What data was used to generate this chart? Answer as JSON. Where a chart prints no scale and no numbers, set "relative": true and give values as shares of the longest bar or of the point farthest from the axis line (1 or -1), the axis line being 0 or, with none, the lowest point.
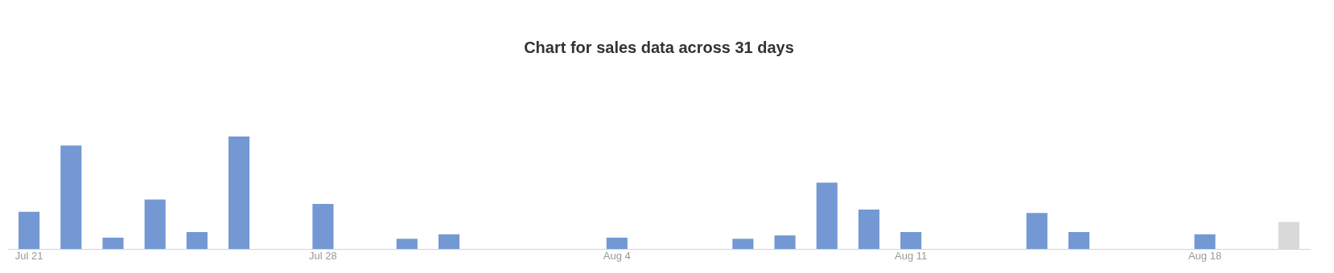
{
  "chart_data": {
    "type": "bar",
    "title": "Chart for sales data across 31 days",
    "categories": [
      "Jul 21",
      null,
      null,
      null,
      null,
      null,
      null,
      "Jul 28",
      null,
      null,
      null,
      null,
      null,
      null,
      "Aug 4",
      null,
      null,
      null,
      null,
      null,
      null,
      "Aug 11",
      null,
      null,
      null,
      null,
      null,
      null,
      "Aug 18",
      null,
      null
    ],
    "values": [
      0.33,
      0.92,
      0.1,
      0.44,
      0.15,
      1,
      0,
      0.4,
      0,
      0.09,
      0.13,
      0,
      0,
      0,
      0.1,
      0,
      0,
      0.09,
      0.12,
      0.59,
      0.35,
      0.15,
      0,
      0,
      0.32,
      0.15,
      0,
      0,
      0.13,
      0,
      0.24
    ],
    "colors": [
      "#7398d3",
      "#7398d3",
      "#7398d3",
      "#7398d3",
      "#7398d3",
      "#7398d3",
      "#7398d3",
      "#7398d3",
      "#7398d3",
      "#7398d3",
      "#7398d3",
      "#7398d3",
      "#7398d3",
      "#7398d3",
      "#7398d3",
      "#7398d3",
      "#7398d3",
      "#7398d3",
      "#7398d3",
      "#7398d3",
      "#7398d3",
      "#7398d3",
      "#7398d3",
      "#7398d3",
      "#7398d3",
      "#7398d3",
      "#7398d3",
      "#7398d3",
      "#7398d3",
      "#7398d3",
      "#d9d9d9"
    ],
    "relative": true
  }
}
